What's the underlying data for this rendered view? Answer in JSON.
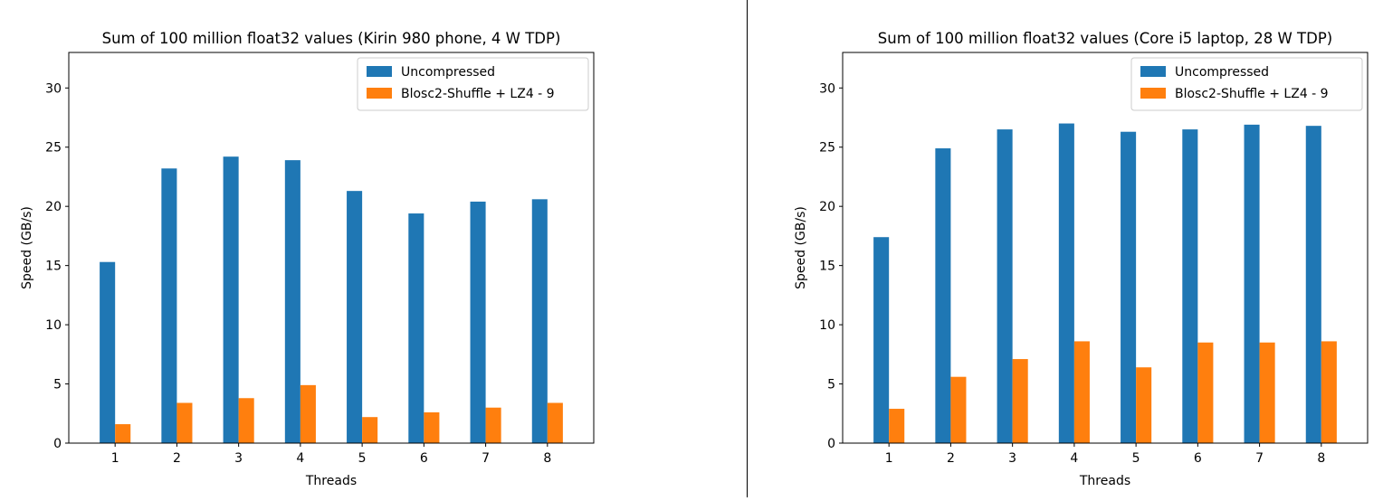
{
  "colors": {
    "uncompressed": "#1f77b4",
    "compressed": "#ff7f0e",
    "axis": "#000000",
    "divider": "#000000"
  },
  "chart_data": [
    {
      "type": "bar",
      "title": "Sum of 100 million float32 values (Kirin 980 phone, 4 W TDP)",
      "xlabel": "Threads",
      "ylabel": "Speed (GB/s)",
      "ylim": [
        0,
        33
      ],
      "yticks": [
        0,
        5,
        10,
        15,
        20,
        25,
        30
      ],
      "categories": [
        "1",
        "2",
        "3",
        "4",
        "5",
        "6",
        "7",
        "8"
      ],
      "legend_position": "top-right",
      "grid": false,
      "series": [
        {
          "name": "Uncompressed",
          "values": [
            15.3,
            23.2,
            24.2,
            23.9,
            21.3,
            19.4,
            20.4,
            20.6
          ]
        },
        {
          "name": "Blosc2-Shuffle + LZ4 - 9",
          "values": [
            1.6,
            3.4,
            3.8,
            4.9,
            2.2,
            2.6,
            3.0,
            3.4
          ]
        }
      ]
    },
    {
      "type": "bar",
      "title": "Sum of 100 million float32 values (Core i5 laptop, 28 W TDP)",
      "xlabel": "Threads",
      "ylabel": "Speed (GB/s)",
      "ylim": [
        0,
        33
      ],
      "yticks": [
        0,
        5,
        10,
        15,
        20,
        25,
        30
      ],
      "categories": [
        "1",
        "2",
        "3",
        "4",
        "5",
        "6",
        "7",
        "8"
      ],
      "legend_position": "top-right",
      "grid": false,
      "series": [
        {
          "name": "Uncompressed",
          "values": [
            17.4,
            24.9,
            26.5,
            27.0,
            26.3,
            26.5,
            26.9,
            26.8
          ]
        },
        {
          "name": "Blosc2-Shuffle + LZ4 - 9",
          "values": [
            2.9,
            5.6,
            7.1,
            8.6,
            6.4,
            8.5,
            8.5,
            8.6
          ]
        }
      ]
    }
  ]
}
